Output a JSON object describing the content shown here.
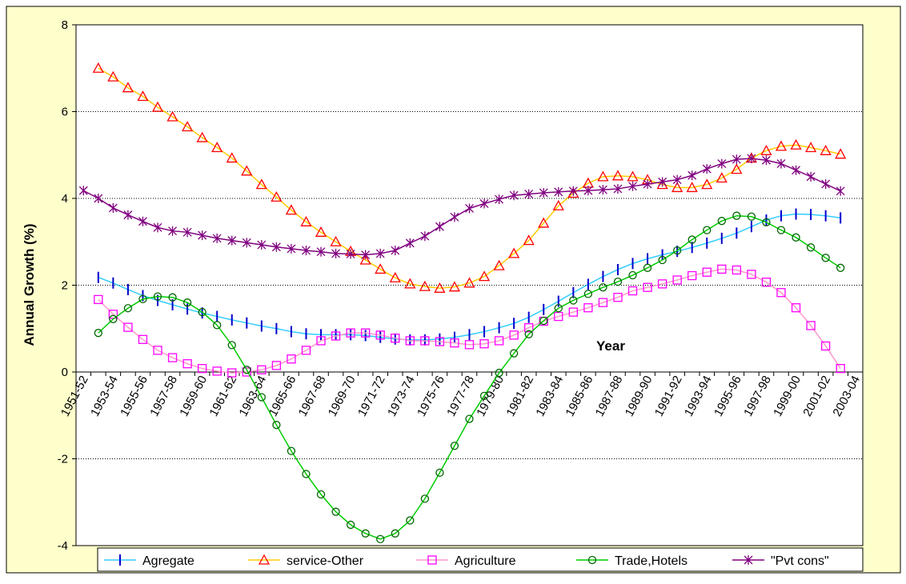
{
  "chart_data": {
    "type": "line",
    "y_label": "Annual Growth (%)",
    "annotation": "Year",
    "categories": [
      "1951-52",
      null,
      "1953-54",
      null,
      "1955-56",
      null,
      "1957-58",
      null,
      "1959-60",
      null,
      "1961-62",
      null,
      "1963-64",
      null,
      "1965-66",
      null,
      "1967-68",
      null,
      "1969-70",
      null,
      "1971-72",
      null,
      "1973-74",
      null,
      "1975-76",
      null,
      "1977-78",
      null,
      "1979-80",
      null,
      "1981-82",
      null,
      "1983-84",
      null,
      "1985-86",
      null,
      "1987-88",
      null,
      "1989-90",
      null,
      "1991-92",
      null,
      "1993-94",
      null,
      "1995-96",
      null,
      "1997-98",
      null,
      "1999-00",
      null,
      "2001-02",
      null,
      "2003-04"
    ],
    "ylim": [
      -4,
      8
    ],
    "yticks": [
      -4,
      -2,
      0,
      2,
      4,
      6,
      8
    ],
    "grid": true,
    "smooth": true,
    "background": "#ffffcc",
    "legend": "bottom",
    "series": [
      {
        "name": "Agregate",
        "color": "#33ccff",
        "marker": "dash",
        "marker_color": "#0000cc",
        "values": [
          null,
          2.18,
          2.05,
          1.9,
          1.76,
          1.65,
          1.55,
          1.45,
          1.36,
          1.28,
          1.2,
          1.13,
          1.06,
          1.0,
          0.93,
          0.88,
          0.86,
          0.86,
          0.86,
          0.84,
          0.8,
          0.76,
          0.74,
          0.74,
          0.76,
          0.8,
          0.86,
          0.93,
          1.02,
          1.12,
          1.26,
          1.44,
          1.63,
          1.83,
          2.02,
          2.2,
          2.36,
          2.5,
          2.61,
          2.7,
          2.78,
          2.87,
          2.97,
          3.08,
          3.2,
          3.35,
          3.5,
          3.6,
          3.64,
          3.63,
          3.6,
          3.55,
          null
        ]
      },
      {
        "name": "service-Other",
        "color": "#ffcc00",
        "marker": "triangle",
        "marker_color": "#ff0000",
        "values": [
          null,
          7.0,
          6.8,
          6.55,
          6.35,
          6.1,
          5.88,
          5.65,
          5.4,
          5.17,
          4.93,
          4.63,
          4.32,
          4.03,
          3.73,
          3.46,
          3.22,
          3.0,
          2.78,
          2.58,
          2.37,
          2.17,
          2.03,
          1.97,
          1.93,
          1.96,
          2.05,
          2.2,
          2.45,
          2.73,
          3.03,
          3.43,
          3.83,
          4.12,
          4.35,
          4.5,
          4.52,
          4.5,
          4.43,
          4.32,
          4.25,
          4.25,
          4.32,
          4.47,
          4.67,
          4.93,
          5.1,
          5.2,
          5.23,
          5.17,
          5.1,
          5.02,
          null
        ]
      },
      {
        "name": "Agriculture",
        "color": "#ff99cc",
        "marker": "square",
        "marker_color": "#ff00ff",
        "values": [
          null,
          1.67,
          1.33,
          1.03,
          0.75,
          0.5,
          0.33,
          0.19,
          0.08,
          0.02,
          -0.02,
          0.0,
          0.05,
          0.15,
          0.3,
          0.5,
          0.72,
          0.83,
          0.9,
          0.9,
          0.85,
          0.78,
          0.72,
          0.72,
          0.7,
          0.67,
          0.63,
          0.65,
          0.72,
          0.85,
          1.02,
          1.17,
          1.28,
          1.38,
          1.48,
          1.6,
          1.72,
          1.87,
          1.95,
          2.03,
          2.12,
          2.22,
          2.3,
          2.37,
          2.35,
          2.25,
          2.07,
          1.83,
          1.48,
          1.07,
          0.6,
          0.08,
          null
        ]
      },
      {
        "name": "Trade,Hotels",
        "color": "#00cc00",
        "marker": "circle",
        "marker_color": "#006600",
        "values": [
          null,
          0.9,
          1.22,
          1.47,
          1.68,
          1.74,
          1.72,
          1.6,
          1.38,
          1.08,
          0.62,
          0.05,
          -0.58,
          -1.22,
          -1.82,
          -2.35,
          -2.82,
          -3.22,
          -3.52,
          -3.72,
          -3.85,
          -3.72,
          -3.42,
          -2.92,
          -2.32,
          -1.7,
          -1.08,
          -0.55,
          -0.02,
          0.43,
          0.87,
          1.18,
          1.47,
          1.65,
          1.8,
          1.95,
          2.08,
          2.23,
          2.4,
          2.58,
          2.8,
          3.05,
          3.27,
          3.48,
          3.6,
          3.58,
          3.45,
          3.27,
          3.1,
          2.87,
          2.63,
          2.4,
          null
        ]
      },
      {
        "name": "\"Pvt cons\"",
        "color": "#800080",
        "marker": "star",
        "marker_color": "#800080",
        "values": [
          4.18,
          4.0,
          3.78,
          3.62,
          3.47,
          3.33,
          3.25,
          3.22,
          3.15,
          3.08,
          3.03,
          2.98,
          2.93,
          2.88,
          2.84,
          2.8,
          2.77,
          2.73,
          2.72,
          2.7,
          2.73,
          2.8,
          2.97,
          3.13,
          3.35,
          3.57,
          3.77,
          3.88,
          3.98,
          4.07,
          4.1,
          4.13,
          4.15,
          4.17,
          4.18,
          4.2,
          4.22,
          4.28,
          4.33,
          4.38,
          4.43,
          4.53,
          4.68,
          4.8,
          4.9,
          4.92,
          4.88,
          4.8,
          4.65,
          4.5,
          4.33,
          4.17,
          null
        ]
      }
    ]
  }
}
